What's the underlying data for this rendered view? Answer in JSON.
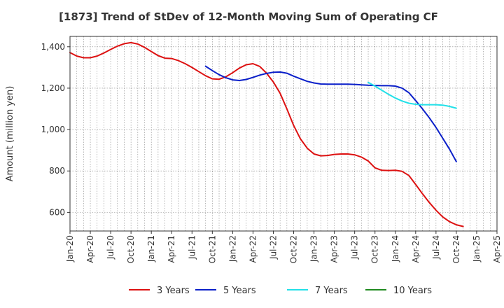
{
  "chart_data": {
    "type": "line",
    "title": "[1873]  Trend of StDev of 12-Month Moving Sum of Operating CF",
    "xlabel": "",
    "ylabel": "Amount (million yen)",
    "ylim": [
      510,
      1450
    ],
    "yticks": [
      600,
      800,
      1000,
      1200,
      1400
    ],
    "ytick_labels": [
      "600",
      "800",
      "1,000",
      "1,200",
      "1,400"
    ],
    "xlim": [
      "2020-01",
      "2025-04"
    ],
    "xticks": [
      "2020-01",
      "2020-04",
      "2020-07",
      "2020-10",
      "2021-01",
      "2021-04",
      "2021-07",
      "2021-10",
      "2022-01",
      "2022-04",
      "2022-07",
      "2022-10",
      "2023-01",
      "2023-04",
      "2023-07",
      "2023-10",
      "2024-01",
      "2024-04",
      "2024-07",
      "2024-10",
      "2025-01",
      "2025-04"
    ],
    "xtick_labels": [
      "Jan-20",
      "Apr-20",
      "Jul-20",
      "Oct-20",
      "Jan-21",
      "Apr-21",
      "Jul-21",
      "Oct-21",
      "Jan-22",
      "Apr-22",
      "Jul-22",
      "Oct-22",
      "Jan-23",
      "Apr-23",
      "Jul-23",
      "Oct-23",
      "Jan-24",
      "Apr-24",
      "Jul-24",
      "Oct-24",
      "Jan-25",
      "Apr-25"
    ],
    "grid": true,
    "legend": "bottom",
    "series": [
      {
        "name": "3 Years",
        "color": "#dd1111",
        "points": [
          [
            "2020-01",
            1372
          ],
          [
            "2020-02",
            1355
          ],
          [
            "2020-03",
            1347
          ],
          [
            "2020-04",
            1347
          ],
          [
            "2020-05",
            1355
          ],
          [
            "2020-06",
            1370
          ],
          [
            "2020-07",
            1387
          ],
          [
            "2020-08",
            1403
          ],
          [
            "2020-09",
            1415
          ],
          [
            "2020-10",
            1420
          ],
          [
            "2020-11",
            1413
          ],
          [
            "2020-12",
            1397
          ],
          [
            "2021-01",
            1377
          ],
          [
            "2021-02",
            1357
          ],
          [
            "2021-03",
            1345
          ],
          [
            "2021-04",
            1343
          ],
          [
            "2021-05",
            1333
          ],
          [
            "2021-06",
            1318
          ],
          [
            "2021-07",
            1300
          ],
          [
            "2021-08",
            1280
          ],
          [
            "2021-09",
            1260
          ],
          [
            "2021-10",
            1245
          ],
          [
            "2021-11",
            1243
          ],
          [
            "2021-12",
            1255
          ],
          [
            "2022-01",
            1275
          ],
          [
            "2022-02",
            1297
          ],
          [
            "2022-03",
            1313
          ],
          [
            "2022-04",
            1318
          ],
          [
            "2022-05",
            1305
          ],
          [
            "2022-06",
            1272
          ],
          [
            "2022-07",
            1230
          ],
          [
            "2022-08",
            1175
          ],
          [
            "2022-09",
            1100
          ],
          [
            "2022-10",
            1020
          ],
          [
            "2022-11",
            955
          ],
          [
            "2022-12",
            910
          ],
          [
            "2023-01",
            882
          ],
          [
            "2023-02",
            873
          ],
          [
            "2023-03",
            875
          ],
          [
            "2023-04",
            880
          ],
          [
            "2023-05",
            882
          ],
          [
            "2023-06",
            882
          ],
          [
            "2023-07",
            878
          ],
          [
            "2023-08",
            867
          ],
          [
            "2023-09",
            848
          ],
          [
            "2023-10",
            815
          ],
          [
            "2023-11",
            803
          ],
          [
            "2023-12",
            802
          ],
          [
            "2024-01",
            803
          ],
          [
            "2024-02",
            798
          ],
          [
            "2024-03",
            778
          ],
          [
            "2024-04",
            735
          ],
          [
            "2024-05",
            690
          ],
          [
            "2024-06",
            648
          ],
          [
            "2024-07",
            610
          ],
          [
            "2024-08",
            578
          ],
          [
            "2024-09",
            555
          ],
          [
            "2024-10",
            540
          ],
          [
            "2024-11",
            532
          ]
        ]
      },
      {
        "name": "5 Years",
        "color": "#0a1fc9",
        "points": [
          [
            "2021-09",
            1306
          ],
          [
            "2021-10",
            1285
          ],
          [
            "2021-11",
            1265
          ],
          [
            "2021-12",
            1250
          ],
          [
            "2022-01",
            1240
          ],
          [
            "2022-02",
            1237
          ],
          [
            "2022-03",
            1242
          ],
          [
            "2022-04",
            1252
          ],
          [
            "2022-05",
            1263
          ],
          [
            "2022-06",
            1271
          ],
          [
            "2022-07",
            1277
          ],
          [
            "2022-08",
            1278
          ],
          [
            "2022-09",
            1272
          ],
          [
            "2022-10",
            1258
          ],
          [
            "2022-11",
            1245
          ],
          [
            "2022-12",
            1233
          ],
          [
            "2023-01",
            1225
          ],
          [
            "2023-02",
            1220
          ],
          [
            "2023-03",
            1219
          ],
          [
            "2023-04",
            1219
          ],
          [
            "2023-05",
            1219
          ],
          [
            "2023-06",
            1219
          ],
          [
            "2023-07",
            1218
          ],
          [
            "2023-08",
            1216
          ],
          [
            "2023-09",
            1214
          ],
          [
            "2023-10",
            1213
          ],
          [
            "2023-11",
            1212
          ],
          [
            "2023-12",
            1212
          ],
          [
            "2024-01",
            1210
          ],
          [
            "2024-02",
            1200
          ],
          [
            "2024-03",
            1178
          ],
          [
            "2024-04",
            1140
          ],
          [
            "2024-05",
            1100
          ],
          [
            "2024-06",
            1057
          ],
          [
            "2024-07",
            1010
          ],
          [
            "2024-08",
            958
          ],
          [
            "2024-09",
            905
          ],
          [
            "2024-10",
            845
          ]
        ]
      },
      {
        "name": "7 Years",
        "color": "#22e0e8",
        "points": [
          [
            "2023-09",
            1228
          ],
          [
            "2023-10",
            1210
          ],
          [
            "2023-11",
            1190
          ],
          [
            "2023-12",
            1170
          ],
          [
            "2024-01",
            1152
          ],
          [
            "2024-02",
            1138
          ],
          [
            "2024-03",
            1127
          ],
          [
            "2024-04",
            1122
          ],
          [
            "2024-05",
            1120
          ],
          [
            "2024-06",
            1120
          ],
          [
            "2024-07",
            1120
          ],
          [
            "2024-08",
            1118
          ],
          [
            "2024-09",
            1112
          ],
          [
            "2024-10",
            1103
          ]
        ]
      },
      {
        "name": "10 Years",
        "color": "#1f8a1f",
        "points": []
      }
    ]
  }
}
